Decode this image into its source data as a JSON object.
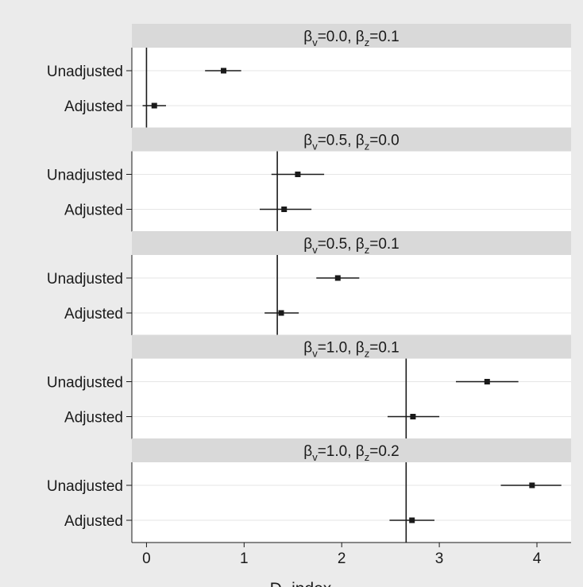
{
  "chart_data": {
    "type": "forest",
    "xlabel": "D−index",
    "xlim": [
      -0.15,
      4.35
    ],
    "xticks": [
      0,
      1,
      2,
      3,
      4
    ],
    "xtick_labels": [
      "0",
      "1",
      "2",
      "3",
      "4"
    ],
    "row_labels": [
      "Unadjusted",
      "Adjusted"
    ],
    "panels": [
      {
        "beta_v": "0.0",
        "beta_z": "0.1",
        "reference_line": 0.0,
        "estimates": [
          {
            "label": "Unadjusted",
            "value": 0.79,
            "ci": [
              0.6,
              0.97
            ]
          },
          {
            "label": "Adjusted",
            "value": 0.08,
            "ci": [
              -0.04,
              0.2
            ]
          }
        ]
      },
      {
        "beta_v": "0.5",
        "beta_z": "0.0",
        "reference_line": 1.34,
        "estimates": [
          {
            "label": "Unadjusted",
            "value": 1.55,
            "ci": [
              1.28,
              1.82
            ]
          },
          {
            "label": "Adjusted",
            "value": 1.41,
            "ci": [
              1.16,
              1.69
            ]
          }
        ]
      },
      {
        "beta_v": "0.5",
        "beta_z": "0.1",
        "reference_line": 1.34,
        "estimates": [
          {
            "label": "Unadjusted",
            "value": 1.96,
            "ci": [
              1.74,
              2.18
            ]
          },
          {
            "label": "Adjusted",
            "value": 1.38,
            "ci": [
              1.21,
              1.56
            ]
          }
        ]
      },
      {
        "beta_v": "1.0",
        "beta_z": "0.1",
        "reference_line": 2.66,
        "estimates": [
          {
            "label": "Unadjusted",
            "value": 3.49,
            "ci": [
              3.17,
              3.81
            ]
          },
          {
            "label": "Adjusted",
            "value": 2.73,
            "ci": [
              2.47,
              3.0
            ]
          }
        ]
      },
      {
        "beta_v": "1.0",
        "beta_z": "0.2",
        "reference_line": 2.66,
        "estimates": [
          {
            "label": "Unadjusted",
            "value": 3.95,
            "ci": [
              3.63,
              4.25
            ]
          },
          {
            "label": "Adjusted",
            "value": 2.72,
            "ci": [
              2.49,
              2.95
            ]
          }
        ]
      }
    ]
  }
}
